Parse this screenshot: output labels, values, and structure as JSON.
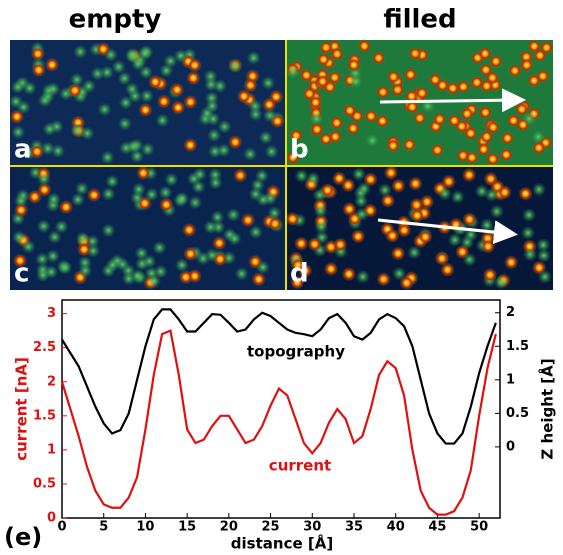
{
  "chart_data": {
    "type": "line",
    "panel_titles": [
      "empty",
      "filled"
    ],
    "panel_labels": [
      "a",
      "b",
      "c",
      "d"
    ],
    "panel_tag": "(e)",
    "xlabel": "distance [Å]",
    "ylabel": "current [nA]",
    "y2label": "Z height [Å]",
    "x": [
      0,
      1,
      2,
      3,
      4,
      5,
      6,
      7,
      8,
      9,
      10,
      11,
      12,
      13,
      14,
      15,
      16,
      17,
      18,
      19,
      20,
      21,
      22,
      23,
      24,
      25,
      26,
      27,
      28,
      29,
      30,
      31,
      32,
      33,
      34,
      35,
      36,
      37,
      38,
      39,
      40,
      41,
      42,
      43,
      44,
      45,
      46,
      47,
      48,
      49,
      50,
      51,
      52
    ],
    "series": [
      {
        "name": "current",
        "color": "#e01010",
        "axis": "y",
        "values": [
          2.0,
          1.6,
          1.2,
          0.75,
          0.4,
          0.2,
          0.15,
          0.15,
          0.3,
          0.6,
          1.3,
          2.1,
          2.7,
          2.75,
          2.1,
          1.3,
          1.1,
          1.15,
          1.35,
          1.5,
          1.5,
          1.3,
          1.1,
          1.15,
          1.35,
          1.65,
          1.9,
          1.8,
          1.45,
          1.1,
          0.95,
          1.1,
          1.4,
          1.6,
          1.45,
          1.1,
          1.2,
          1.6,
          2.1,
          2.3,
          2.2,
          1.8,
          1.0,
          0.4,
          0.15,
          0.05,
          0.05,
          0.1,
          0.3,
          0.7,
          1.5,
          2.2,
          2.7
        ]
      },
      {
        "name": "topography",
        "color": "#000000",
        "axis": "y2",
        "values": [
          1.6,
          1.4,
          1.2,
          0.9,
          0.6,
          0.35,
          0.2,
          0.25,
          0.5,
          1.0,
          1.5,
          1.9,
          2.05,
          2.05,
          1.9,
          1.72,
          1.72,
          1.85,
          1.98,
          1.97,
          1.85,
          1.72,
          1.75,
          1.9,
          2.0,
          1.95,
          1.85,
          1.75,
          1.7,
          1.68,
          1.65,
          1.75,
          1.92,
          1.98,
          1.85,
          1.65,
          1.6,
          1.7,
          1.9,
          1.98,
          1.92,
          1.8,
          1.5,
          1.0,
          0.5,
          0.2,
          0.05,
          0.05,
          0.2,
          0.6,
          1.1,
          1.5,
          1.85
        ]
      }
    ],
    "xlim": [
      0,
      52.5
    ],
    "xticks": [
      0,
      5,
      10,
      15,
      20,
      25,
      30,
      35,
      40,
      45,
      50
    ],
    "ylim": [
      0,
      3.2
    ],
    "yticks": [
      0,
      0.5,
      1,
      1.5,
      2,
      2.5,
      3
    ],
    "y2lim": [
      -1.06,
      2.19
    ],
    "y2ticks": [
      0,
      0.5,
      1,
      1.5,
      2
    ]
  }
}
